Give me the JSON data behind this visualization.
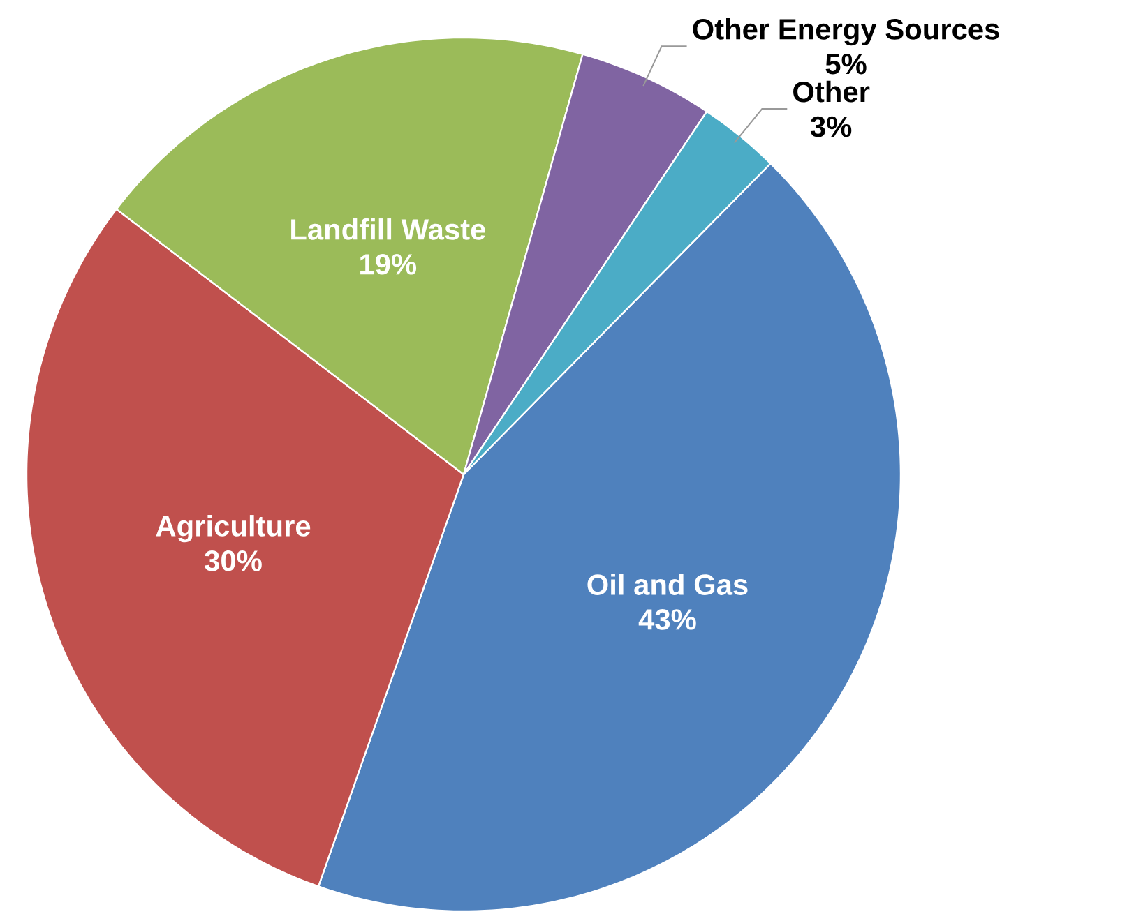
{
  "chart_data": {
    "type": "pie",
    "categories": [
      "Oil and Gas",
      "Agriculture",
      "Landfill Waste",
      "Other Energy Sources",
      "Other"
    ],
    "values": [
      43,
      30,
      19,
      5,
      3
    ],
    "value_labels": [
      "43%",
      "30%",
      "19%",
      "5%",
      "3%"
    ],
    "colors": [
      "#4f81bd",
      "#c0504d",
      "#9bbb59",
      "#8064a2",
      "#4bacc6"
    ]
  }
}
